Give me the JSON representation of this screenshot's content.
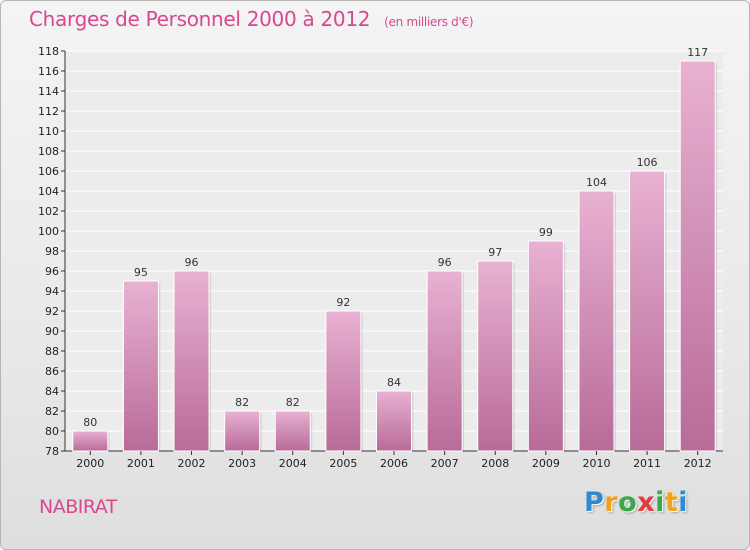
{
  "chart_data": {
    "type": "bar",
    "title": "Charges de Personnel 2000 à 2012",
    "subtitle": "(en milliers d'€)",
    "categories": [
      "2000",
      "2001",
      "2002",
      "2003",
      "2004",
      "2005",
      "2006",
      "2007",
      "2008",
      "2009",
      "2010",
      "2011",
      "2012"
    ],
    "values": [
      80,
      95,
      96,
      82,
      82,
      92,
      84,
      96,
      97,
      99,
      104,
      106,
      117
    ],
    "ylim": [
      78,
      118
    ],
    "yticks": [
      78,
      80,
      82,
      84,
      86,
      88,
      90,
      92,
      94,
      96,
      98,
      100,
      102,
      104,
      106,
      108,
      110,
      112,
      114,
      116,
      118
    ],
    "grid": true,
    "colors": {
      "bar": "#d98bb8",
      "bar_top": "#e8b1d2",
      "bar_bottom": "#b86b98",
      "title": "#d9478f"
    }
  },
  "place_name": "NABIRAT",
  "logo": {
    "letters": [
      "P",
      "r",
      "o",
      "x",
      "i",
      "t",
      "i"
    ],
    "colors": [
      "#2f8ad6",
      "#f0a21c",
      "#3aa849",
      "#e23b3b",
      "#3aa849",
      "#f0a21c",
      "#2f8ad6"
    ]
  }
}
